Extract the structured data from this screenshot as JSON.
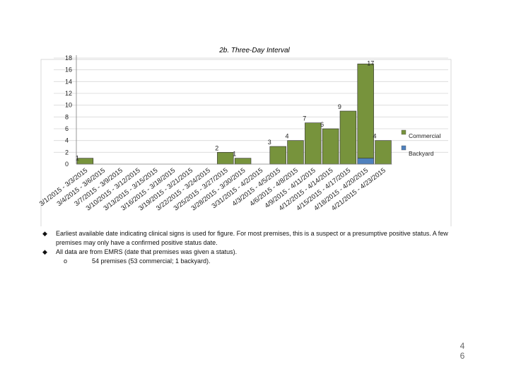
{
  "chart_data": {
    "type": "bar",
    "stacked": true,
    "title": "2b. Three-Day Interval",
    "xlabel": "",
    "ylabel": "",
    "ylim": [
      0,
      18
    ],
    "yticks": [
      0,
      2,
      4,
      6,
      8,
      10,
      12,
      14,
      16,
      18
    ],
    "grid": true,
    "legend_position": "right",
    "categories": [
      "3/1/2015 - 3/3/2015",
      "3/4/2015 - 3/6/2015",
      "3/7/2015 - 3/9/2015",
      "3/10/2015 - 3/12/2015",
      "3/13/2015 - 3/15/2015",
      "3/16/2015 - 3/18/2015",
      "3/19/2015 - 3/21/2015",
      "3/22/2015 - 3/24/2015",
      "3/25/2015 - 3/27/2015",
      "3/28/2015 - 3/30/2015",
      "3/31/2015 - 4/2/2015",
      "4/3/2015 - 4/5/2015",
      "4/6/2015 - 4/8/2015",
      "4/9/2015 - 4/11/2015",
      "4/12/2015 - 4/14/2015",
      "4/15/2015 - 4/17/2015",
      "4/18/2015 - 4/20/2015",
      "4/21/2015 - 4/23/2015"
    ],
    "series": [
      {
        "name": "Commercial",
        "color": "#77933c",
        "values": [
          1,
          0,
          0,
          0,
          0,
          0,
          0,
          0,
          2,
          1,
          0,
          3,
          4,
          7,
          6,
          9,
          16,
          4
        ]
      },
      {
        "name": "Backyard",
        "color": "#4f81bd",
        "values": [
          0,
          0,
          0,
          0,
          0,
          0,
          0,
          0,
          0,
          0,
          0,
          0,
          0,
          0,
          0,
          0,
          1,
          0
        ]
      }
    ],
    "data_labels": [
      {
        "index": 0,
        "text": "1"
      },
      {
        "index": 8,
        "text": "2"
      },
      {
        "index": 9,
        "text": "1"
      },
      {
        "index": 11,
        "text": "3"
      },
      {
        "index": 12,
        "text": "4"
      },
      {
        "index": 13,
        "text": "7"
      },
      {
        "index": 14,
        "text": "6"
      },
      {
        "index": 15,
        "text": "9"
      },
      {
        "index": 16,
        "text": "17"
      },
      {
        "index": 17,
        "text": "4"
      }
    ]
  },
  "notes": {
    "bullets": [
      "Earliest available date indicating clinical signs is used for figure. For most premises, this is a suspect or a presumptive positive status. A few premises may only have a confirmed positive status date.",
      "All data are from EMRS (date that premises was given a status)."
    ],
    "sub_bullet": "54 premises (53 commercial; 1 backyard)."
  },
  "page_number": {
    "line1": "4",
    "line2": "6"
  }
}
